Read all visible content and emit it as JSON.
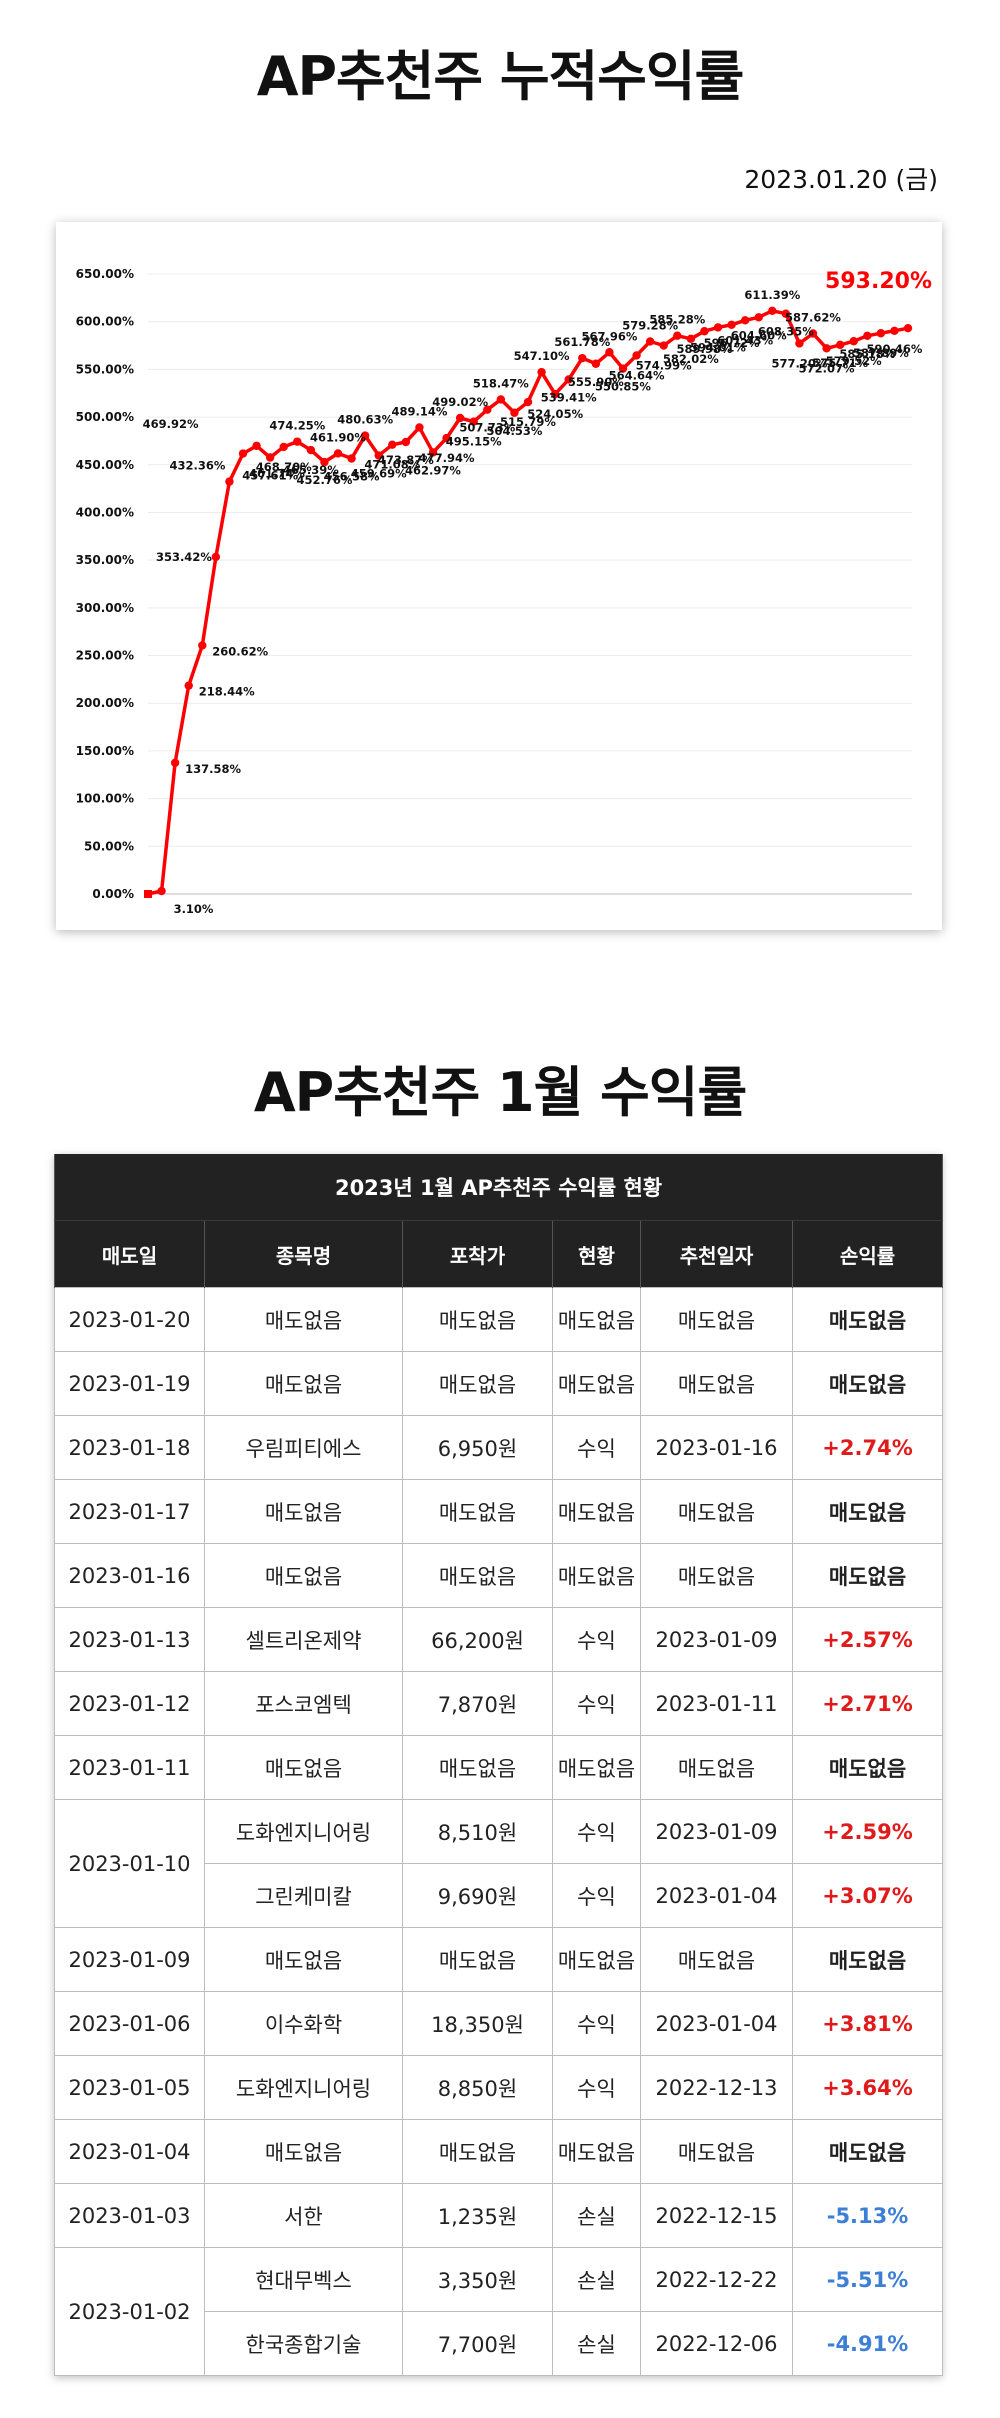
{
  "page": {
    "title": "AP추천주 누적수익률",
    "date": "2023.01.20 (금)",
    "table_title": "AP추천주 1월 수익률"
  },
  "chart_data": {
    "type": "line",
    "title": "",
    "xlabel": "",
    "ylabel": "",
    "ylim": [
      0,
      650
    ],
    "yticks": [
      "0.00%",
      "50.00%",
      "100.00%",
      "150.00%",
      "200.00%",
      "250.00%",
      "300.00%",
      "350.00%",
      "400.00%",
      "450.00%",
      "500.00%",
      "550.00%",
      "600.00%",
      "650.00%"
    ],
    "grid": true,
    "legend": "none",
    "line_color": "#ff0000",
    "highlight": "593.20%",
    "highlight_color": "#ff0000",
    "series": [
      {
        "values": [
          0,
          3.1,
          137.58,
          218.44,
          260.62,
          353.42,
          432.36,
          461.74,
          469.92,
          457.61,
          468.7,
          474.25,
          465.39,
          452.76,
          461.9,
          456.58,
          480.63,
          459.69,
          471.08,
          473.87,
          489.14,
          462.97,
          477.94,
          499.02,
          495.15,
          507.73,
          518.47,
          504.53,
          515.79,
          547.1,
          524.05,
          539.41,
          561.78,
          555.9,
          567.96,
          550.85,
          564.64,
          579.28,
          574.99,
          585.28,
          582.02,
          589.98,
          594.01,
          596.72,
          601.43,
          604.6,
          611.39,
          608.35,
          577.2,
          587.62,
          572.07,
          575.71,
          579.52,
          585.18,
          587.89,
          590.46,
          593.2
        ],
        "labels": [
          "",
          "3.10%",
          "137.58%",
          "218.44%",
          "260.62%",
          "353.42%",
          "432.36%",
          "461.74%",
          "469.92%",
          "457.61%",
          "468.70%",
          "474.25%",
          "465.39%",
          "452.76%",
          "461.90%",
          "456.58%",
          "480.63%",
          "459.69%",
          "471.08%",
          "473.87%",
          "489.14%",
          "462.97%",
          "477.94%",
          "499.02%",
          "495.15%",
          "507.73%",
          "518.47%",
          "504.53%",
          "515.79%",
          "547.10%",
          "524.05%",
          "539.41%",
          "561.78%",
          "555.90%",
          "567.96%",
          "550.85%",
          "564.64%",
          "579.28%",
          "574.99%",
          "585.28%",
          "582.02%",
          "589.98%",
          "594.01%",
          "596.72%",
          "601.43%",
          "604.60%",
          "611.39%",
          "608.35%",
          "577.20%",
          "587.62%",
          "572.07%",
          "575.71%",
          "579.52%",
          "585.18%",
          "587.89%",
          "590.46%",
          ""
        ]
      }
    ]
  },
  "table": {
    "caption": "2023년 1월 AP추천주 수익률 현황",
    "headers": [
      "매도일",
      "종목명",
      "포착가",
      "현황",
      "추천일자",
      "손익률"
    ],
    "rows": [
      {
        "date": "2023-01-20",
        "name": "매도없음",
        "price": "매도없음",
        "status": "매도없음",
        "rec": "매도없음",
        "pl": "매도없음",
        "sign": "none"
      },
      {
        "date": "2023-01-19",
        "name": "매도없음",
        "price": "매도없음",
        "status": "매도없음",
        "rec": "매도없음",
        "pl": "매도없음",
        "sign": "none"
      },
      {
        "date": "2023-01-18",
        "name": "우림피티에스",
        "price": "6,950원",
        "status": "수익",
        "rec": "2023-01-16",
        "pl": "+2.74%",
        "sign": "pos"
      },
      {
        "date": "2023-01-17",
        "name": "매도없음",
        "price": "매도없음",
        "status": "매도없음",
        "rec": "매도없음",
        "pl": "매도없음",
        "sign": "none"
      },
      {
        "date": "2023-01-16",
        "name": "매도없음",
        "price": "매도없음",
        "status": "매도없음",
        "rec": "매도없음",
        "pl": "매도없음",
        "sign": "none"
      },
      {
        "date": "2023-01-13",
        "name": "셀트리온제약",
        "price": "66,200원",
        "status": "수익",
        "rec": "2023-01-09",
        "pl": "+2.57%",
        "sign": "pos"
      },
      {
        "date": "2023-01-12",
        "name": "포스코엠텍",
        "price": "7,870원",
        "status": "수익",
        "rec": "2023-01-11",
        "pl": "+2.71%",
        "sign": "pos"
      },
      {
        "date": "2023-01-11",
        "name": "매도없음",
        "price": "매도없음",
        "status": "매도없음",
        "rec": "매도없음",
        "pl": "매도없음",
        "sign": "none"
      },
      {
        "date": "2023-01-10",
        "span": 2,
        "name": "도화엔지니어링",
        "price": "8,510원",
        "status": "수익",
        "rec": "2023-01-09",
        "pl": "+2.59%",
        "sign": "pos"
      },
      {
        "date": "",
        "cont": true,
        "name": "그린케미칼",
        "price": "9,690원",
        "status": "수익",
        "rec": "2023-01-04",
        "pl": "+3.07%",
        "sign": "pos"
      },
      {
        "date": "2023-01-09",
        "name": "매도없음",
        "price": "매도없음",
        "status": "매도없음",
        "rec": "매도없음",
        "pl": "매도없음",
        "sign": "none"
      },
      {
        "date": "2023-01-06",
        "name": "이수화학",
        "price": "18,350원",
        "status": "수익",
        "rec": "2023-01-04",
        "pl": "+3.81%",
        "sign": "pos"
      },
      {
        "date": "2023-01-05",
        "name": "도화엔지니어링",
        "price": "8,850원",
        "status": "수익",
        "rec": "2022-12-13",
        "pl": "+3.64%",
        "sign": "pos"
      },
      {
        "date": "2023-01-04",
        "name": "매도없음",
        "price": "매도없음",
        "status": "매도없음",
        "rec": "매도없음",
        "pl": "매도없음",
        "sign": "none"
      },
      {
        "date": "2023-01-03",
        "name": "서한",
        "price": "1,235원",
        "status": "손실",
        "rec": "2022-12-15",
        "pl": "-5.13%",
        "sign": "neg"
      },
      {
        "date": "2023-01-02",
        "span": 2,
        "name": "현대무벡스",
        "price": "3,350원",
        "status": "손실",
        "rec": "2022-12-22",
        "pl": "-5.51%",
        "sign": "neg"
      },
      {
        "date": "",
        "cont": true,
        "name": "한국종합기술",
        "price": "7,700원",
        "status": "손실",
        "rec": "2022-12-06",
        "pl": "-4.91%",
        "sign": "neg"
      }
    ]
  }
}
